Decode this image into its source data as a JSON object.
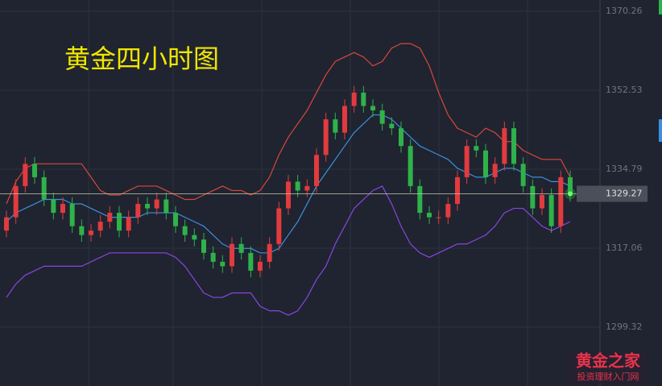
{
  "chart_data": {
    "type": "candlestick",
    "title": "黄金四小时图",
    "watermark": "黄金之家",
    "watermark_subtitle": "投资理财入门网",
    "current_price": 1329.27,
    "up_color": "#e23b3f",
    "down_color": "#2fb24a",
    "ylim": [
      1286.1,
      1372.8
    ],
    "yticks": [
      1370.26,
      1352.53,
      1334.79,
      1317.06,
      1299.32
    ],
    "grid": true,
    "open": [
      1321,
      1324,
      1331,
      1336,
      1333,
      1328,
      1325,
      1327,
      1322,
      1320,
      1321,
      1323,
      1325,
      1321,
      1324,
      1327,
      1326,
      1328,
      1325,
      1322,
      1320,
      1319,
      1316,
      1314,
      1313,
      1318,
      1316,
      1312,
      1314,
      1318,
      1326,
      1332,
      1330,
      1331,
      1338,
      1346,
      1343,
      1349,
      1352,
      1349,
      1348,
      1345,
      1344,
      1340,
      1331,
      1325,
      1324,
      1324,
      1327,
      1333,
      1340,
      1339,
      1333,
      1336,
      1344,
      1336,
      1331,
      1326,
      1329,
      1322,
      1333
    ],
    "high": [
      1325.5,
      1332.5,
      1337.5,
      1337.5,
      1334.5,
      1329.5,
      1328.5,
      1328.5,
      1323.5,
      1322.5,
      1324.5,
      1326.5,
      1326.5,
      1325.5,
      1328.5,
      1328.5,
      1329.5,
      1329.5,
      1326.5,
      1323.5,
      1321.5,
      1320.5,
      1317.5,
      1315.5,
      1319.5,
      1319.5,
      1317.5,
      1315.5,
      1319.5,
      1327.5,
      1333.5,
      1333.5,
      1332.5,
      1339.5,
      1347.5,
      1347.5,
      1350.5,
      1353.5,
      1353.5,
      1350.5,
      1349.5,
      1346.5,
      1345.5,
      1341.5,
      1332.5,
      1326.5,
      1325.5,
      1328.5,
      1334.5,
      1341.5,
      1341.5,
      1340.5,
      1337.5,
      1345.5,
      1345.5,
      1337.5,
      1332.5,
      1330.5,
      1330.5,
      1334.5,
      1334.5
    ],
    "low": [
      1319.5,
      1322.5,
      1329.5,
      1331.5,
      1326.5,
      1323.5,
      1323.5,
      1320.5,
      1318.5,
      1318.5,
      1319.5,
      1321.5,
      1319.5,
      1319.5,
      1322.5,
      1324.5,
      1324.5,
      1323.5,
      1320.5,
      1318.5,
      1317.5,
      1314.5,
      1312.5,
      1311.5,
      1311.5,
      1314.5,
      1310.5,
      1310.5,
      1312.5,
      1316.5,
      1324.5,
      1328.5,
      1328.5,
      1329.5,
      1336.5,
      1341.5,
      1341.5,
      1347.5,
      1347.5,
      1346.5,
      1343.5,
      1342.5,
      1338.5,
      1329.5,
      1323.5,
      1322.5,
      1322.5,
      1322.5,
      1325.5,
      1331.5,
      1337.5,
      1331.5,
      1331.5,
      1334.5,
      1334.5,
      1329.5,
      1324.5,
      1324.5,
      1320.5,
      1320.5,
      1327.5
    ],
    "close": [
      1324,
      1331,
      1336,
      1333,
      1328,
      1325,
      1327,
      1322,
      1320,
      1321,
      1323,
      1325,
      1321,
      1324,
      1327,
      1326,
      1328,
      1325,
      1322,
      1320,
      1319,
      1316,
      1314,
      1313,
      1318,
      1316,
      1312,
      1314,
      1318,
      1326,
      1332,
      1330,
      1331,
      1338,
      1346,
      1343,
      1349,
      1352,
      1349,
      1348,
      1345,
      1344,
      1340,
      1331,
      1325,
      1324,
      1324,
      1327,
      1333,
      1340,
      1339,
      1333,
      1336,
      1344,
      1336,
      1331,
      1326,
      1329,
      1322,
      1333,
      1329.27
    ],
    "bands": [
      {
        "color": "#d9473c",
        "values": [
          1327,
          1332,
          1335,
          1336,
          1336,
          1336,
          1336,
          1336,
          1336,
          1333,
          1330,
          1329,
          1329,
          1330,
          1331,
          1331,
          1331,
          1330,
          1329,
          1328,
          1328,
          1329,
          1330,
          1331,
          1330,
          1330,
          1329,
          1330,
          1333,
          1338,
          1342,
          1345,
          1348,
          1352,
          1356,
          1359,
          1360,
          1361,
          1360,
          1358,
          1359,
          1362,
          1363,
          1363,
          1362,
          1358,
          1352,
          1347,
          1344,
          1343,
          1342,
          1344,
          1343,
          1341,
          1341,
          1339,
          1338,
          1337,
          1337,
          1337,
          1333
        ]
      },
      {
        "color": "#3d8fe0",
        "values": [
          1323,
          1325,
          1326,
          1327,
          1328,
          1328,
          1328,
          1327,
          1327,
          1326,
          1325,
          1324,
          1324,
          1324,
          1324,
          1325,
          1325,
          1325,
          1325,
          1324,
          1323,
          1322,
          1320,
          1318,
          1317,
          1317,
          1317,
          1316,
          1316,
          1317,
          1320,
          1323,
          1327,
          1331,
          1334,
          1337,
          1340,
          1343,
          1345,
          1347,
          1347,
          1346,
          1344,
          1342,
          1340,
          1339,
          1338,
          1337,
          1335,
          1334,
          1333,
          1333,
          1334,
          1335,
          1335,
          1334,
          1333,
          1333,
          1332,
          1332,
          1331
        ]
      },
      {
        "color": "#8b45e0",
        "values": [
          1306,
          1309,
          1311,
          1312,
          1313,
          1313,
          1313,
          1313,
          1313,
          1314,
          1315,
          1316,
          1316,
          1316,
          1316,
          1316,
          1316,
          1316,
          1315,
          1313,
          1310,
          1307,
          1306,
          1306,
          1307,
          1307,
          1307,
          1304,
          1303,
          1303,
          1302,
          1303,
          1306,
          1310,
          1313,
          1318,
          1322,
          1326,
          1328,
          1330,
          1331,
          1327,
          1322,
          1318,
          1316,
          1315,
          1316,
          1317,
          1318,
          1318,
          1319,
          1320,
          1322,
          1325,
          1326,
          1326,
          1324,
          1322,
          1321,
          1322,
          1323
        ]
      }
    ]
  }
}
